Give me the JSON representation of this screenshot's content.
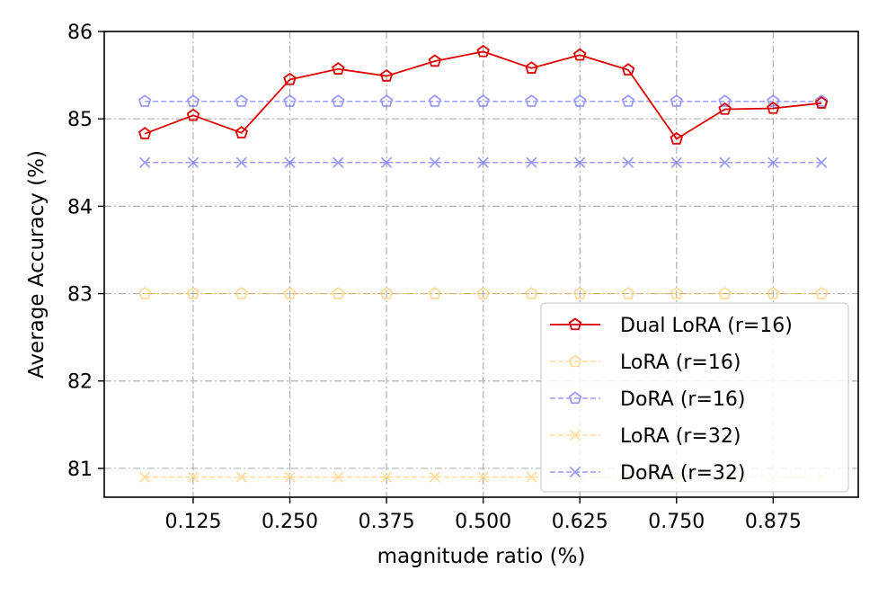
{
  "chart_data": {
    "type": "line",
    "title": "",
    "xlabel": "magnitude ratio (%)",
    "ylabel": "Average Accuracy (%)",
    "x": [
      0.0625,
      0.125,
      0.1875,
      0.25,
      0.3125,
      0.375,
      0.4375,
      0.5,
      0.5625,
      0.625,
      0.6875,
      0.75,
      0.8125,
      0.875,
      0.9375
    ],
    "xlim": [
      0.01,
      0.985
    ],
    "ylim": [
      80.67,
      86.0
    ],
    "xticks": [
      0.125,
      0.25,
      0.375,
      0.5,
      0.625,
      0.75,
      0.875
    ],
    "xtick_labels": [
      "0.125",
      "0.250",
      "0.375",
      "0.500",
      "0.625",
      "0.750",
      "0.875"
    ],
    "yticks": [
      81,
      82,
      83,
      84,
      85,
      86
    ],
    "ytick_labels": [
      "81",
      "82",
      "83",
      "84",
      "85",
      "86"
    ],
    "grid": true,
    "legend_position": "lower-right",
    "series": [
      {
        "name": "Dual LoRA (r=16)",
        "color": "#dd0000",
        "marker": "pentagon",
        "linestyle": "solid",
        "alpha": 1.0,
        "values": [
          84.83,
          85.04,
          84.84,
          85.45,
          85.57,
          85.49,
          85.66,
          85.77,
          85.58,
          85.73,
          85.56,
          84.77,
          85.11,
          85.12,
          85.18
        ]
      },
      {
        "name": "LoRA (r=16)",
        "color": "#ffc04d",
        "marker": "pentagon",
        "linestyle": "dashed",
        "alpha": 0.55,
        "values": [
          83.0,
          83.0,
          83.0,
          83.0,
          83.0,
          83.0,
          83.0,
          83.0,
          83.0,
          83.0,
          83.0,
          83.0,
          83.0,
          83.0,
          83.0
        ]
      },
      {
        "name": "DoRA (r=16)",
        "color": "#4d4dff",
        "marker": "pentagon",
        "linestyle": "dashed",
        "alpha": 0.55,
        "values": [
          85.2,
          85.2,
          85.2,
          85.2,
          85.2,
          85.2,
          85.2,
          85.2,
          85.2,
          85.2,
          85.2,
          85.2,
          85.2,
          85.2,
          85.2
        ]
      },
      {
        "name": "LoRA (r=32)",
        "color": "#ffc04d",
        "marker": "x",
        "linestyle": "dashed",
        "alpha": 0.55,
        "values": [
          80.9,
          80.9,
          80.9,
          80.9,
          80.9,
          80.9,
          80.9,
          80.9,
          80.9,
          80.9,
          80.9,
          80.9,
          80.9,
          80.9,
          80.9
        ]
      },
      {
        "name": "DoRA (r=32)",
        "color": "#4d4dff",
        "marker": "x",
        "linestyle": "dashed",
        "alpha": 0.55,
        "values": [
          84.5,
          84.5,
          84.5,
          84.5,
          84.5,
          84.5,
          84.5,
          84.5,
          84.5,
          84.5,
          84.5,
          84.5,
          84.5,
          84.5,
          84.5
        ]
      }
    ]
  }
}
